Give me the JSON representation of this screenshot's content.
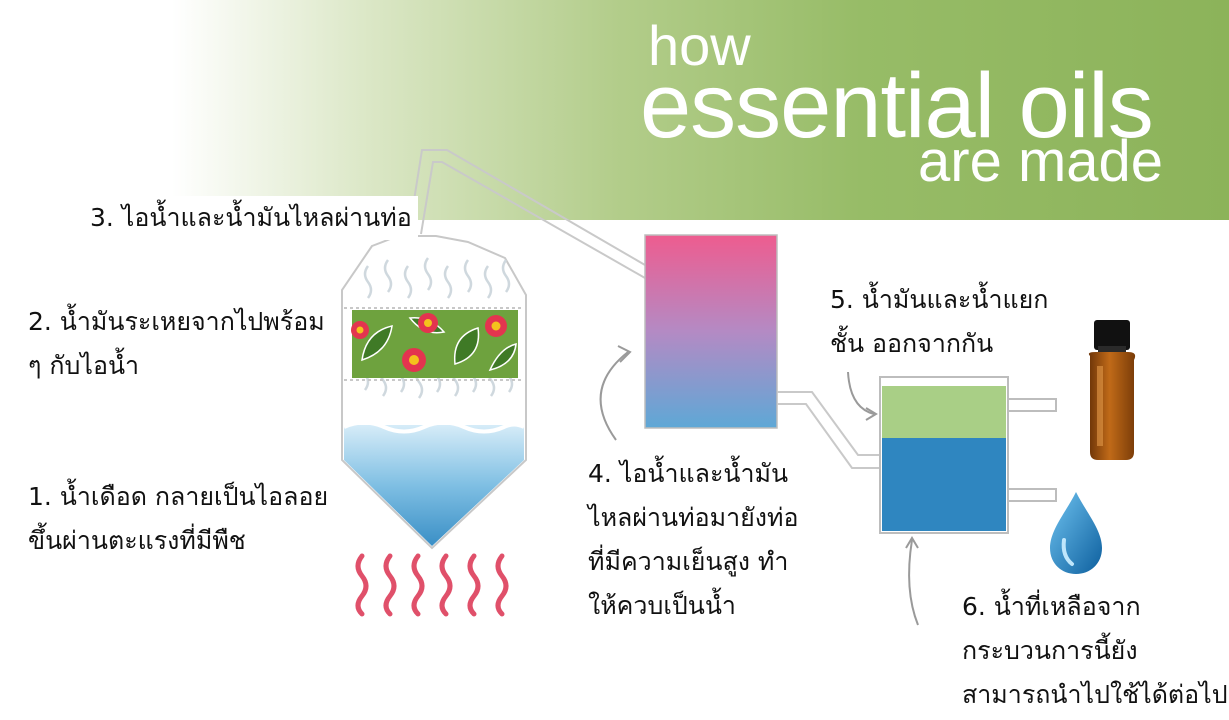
{
  "title": {
    "line1": "how",
    "line2": "essential oils",
    "line3": "are made"
  },
  "steps": [
    {
      "number": "1.",
      "lines": [
        "1. น้ำเดือด กลายเป็นไอลอย",
        "ขึ้นผ่านตะแรงที่มีพืช"
      ]
    },
    {
      "number": "2.",
      "lines": [
        "2. น้ำมันระเหยจากไปพร้อม",
        "ๆ กับไอน้ำ"
      ]
    },
    {
      "number": "3.",
      "lines": [
        "3. ไอน้ำและน้ำมันไหลผ่านท่อ"
      ]
    },
    {
      "number": "4.",
      "lines": [
        "4. ไอน้ำและน้ำมัน",
        "ไหลผ่านท่อมายังท่อ",
        "ที่มีความเย็นสูง ทำ",
        "ให้ควบเป็นน้ำ"
      ]
    },
    {
      "number": "5.",
      "lines": [
        "5. น้ำมันและน้ำแยก",
        "ชั้น ออกจากกัน"
      ]
    },
    {
      "number": "6.",
      "lines": [
        "6. น้ำที่เหลือจาก",
        "กระบวนการนี้ยัง",
        "สามารถนำไปใช้ได้ต่อไป"
      ]
    }
  ],
  "colors": {
    "banner_green": "#8cb35a",
    "condenser_top": "#ee5c8f",
    "condenser_bottom": "#5ea8d6",
    "oil_layer": "#a9cf86",
    "water_layer": "#2f86c0",
    "heat": "#e0506a",
    "bottle": "#a85a12"
  }
}
